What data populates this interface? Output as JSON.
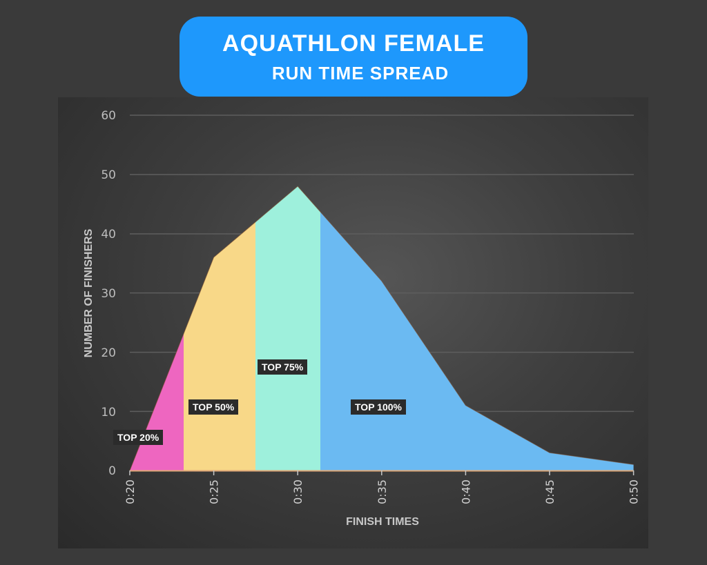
{
  "title": {
    "main": "AQUATHLON FEMALE",
    "sub": "RUN TIME SPREAD",
    "background_color": "#1e98fc"
  },
  "chart_data": {
    "type": "area",
    "title": "AQUATHLON FEMALE RUN TIME SPREAD",
    "xlabel": "FINISH TIMES",
    "ylabel": "NUMBER OF FINISHERS",
    "x": [
      "0:20",
      "0:25",
      "0:30",
      "0:35",
      "0:40",
      "0:45",
      "0:50"
    ],
    "values": [
      0,
      36,
      48,
      32,
      11,
      3,
      1
    ],
    "ylim": [
      0,
      60
    ],
    "yticks": [
      0,
      10,
      20,
      30,
      40,
      50,
      60
    ],
    "grid": true,
    "legend": "none",
    "bands": [
      {
        "label": "TOP 20%",
        "from": "0:20",
        "to": "0:23:12",
        "color": "#ee66c0"
      },
      {
        "label": "TOP 50%",
        "from": "0:23:12",
        "to": "0:27:24",
        "color": "#f8d888"
      },
      {
        "label": "TOP 75%",
        "from": "0:27:24",
        "to": "0:31:18",
        "color": "#9ef0dc"
      },
      {
        "label": "TOP 100%",
        "from": "0:31:18",
        "to": "0:50",
        "color": "#6bbaf2"
      }
    ]
  },
  "labels": {
    "top20": "TOP 20%",
    "top50": "TOP 50%",
    "top75": "TOP 75%",
    "top100": "TOP 100%"
  },
  "axis": {
    "xlabel": "FINISH TIMES",
    "ylabel": "NUMBER OF FINISHERS",
    "yticks": [
      "0",
      "10",
      "20",
      "30",
      "40",
      "50",
      "60"
    ],
    "xticks": [
      "0:20",
      "0:25",
      "0:30",
      "0:35",
      "0:40",
      "0:45",
      "0:50"
    ]
  }
}
